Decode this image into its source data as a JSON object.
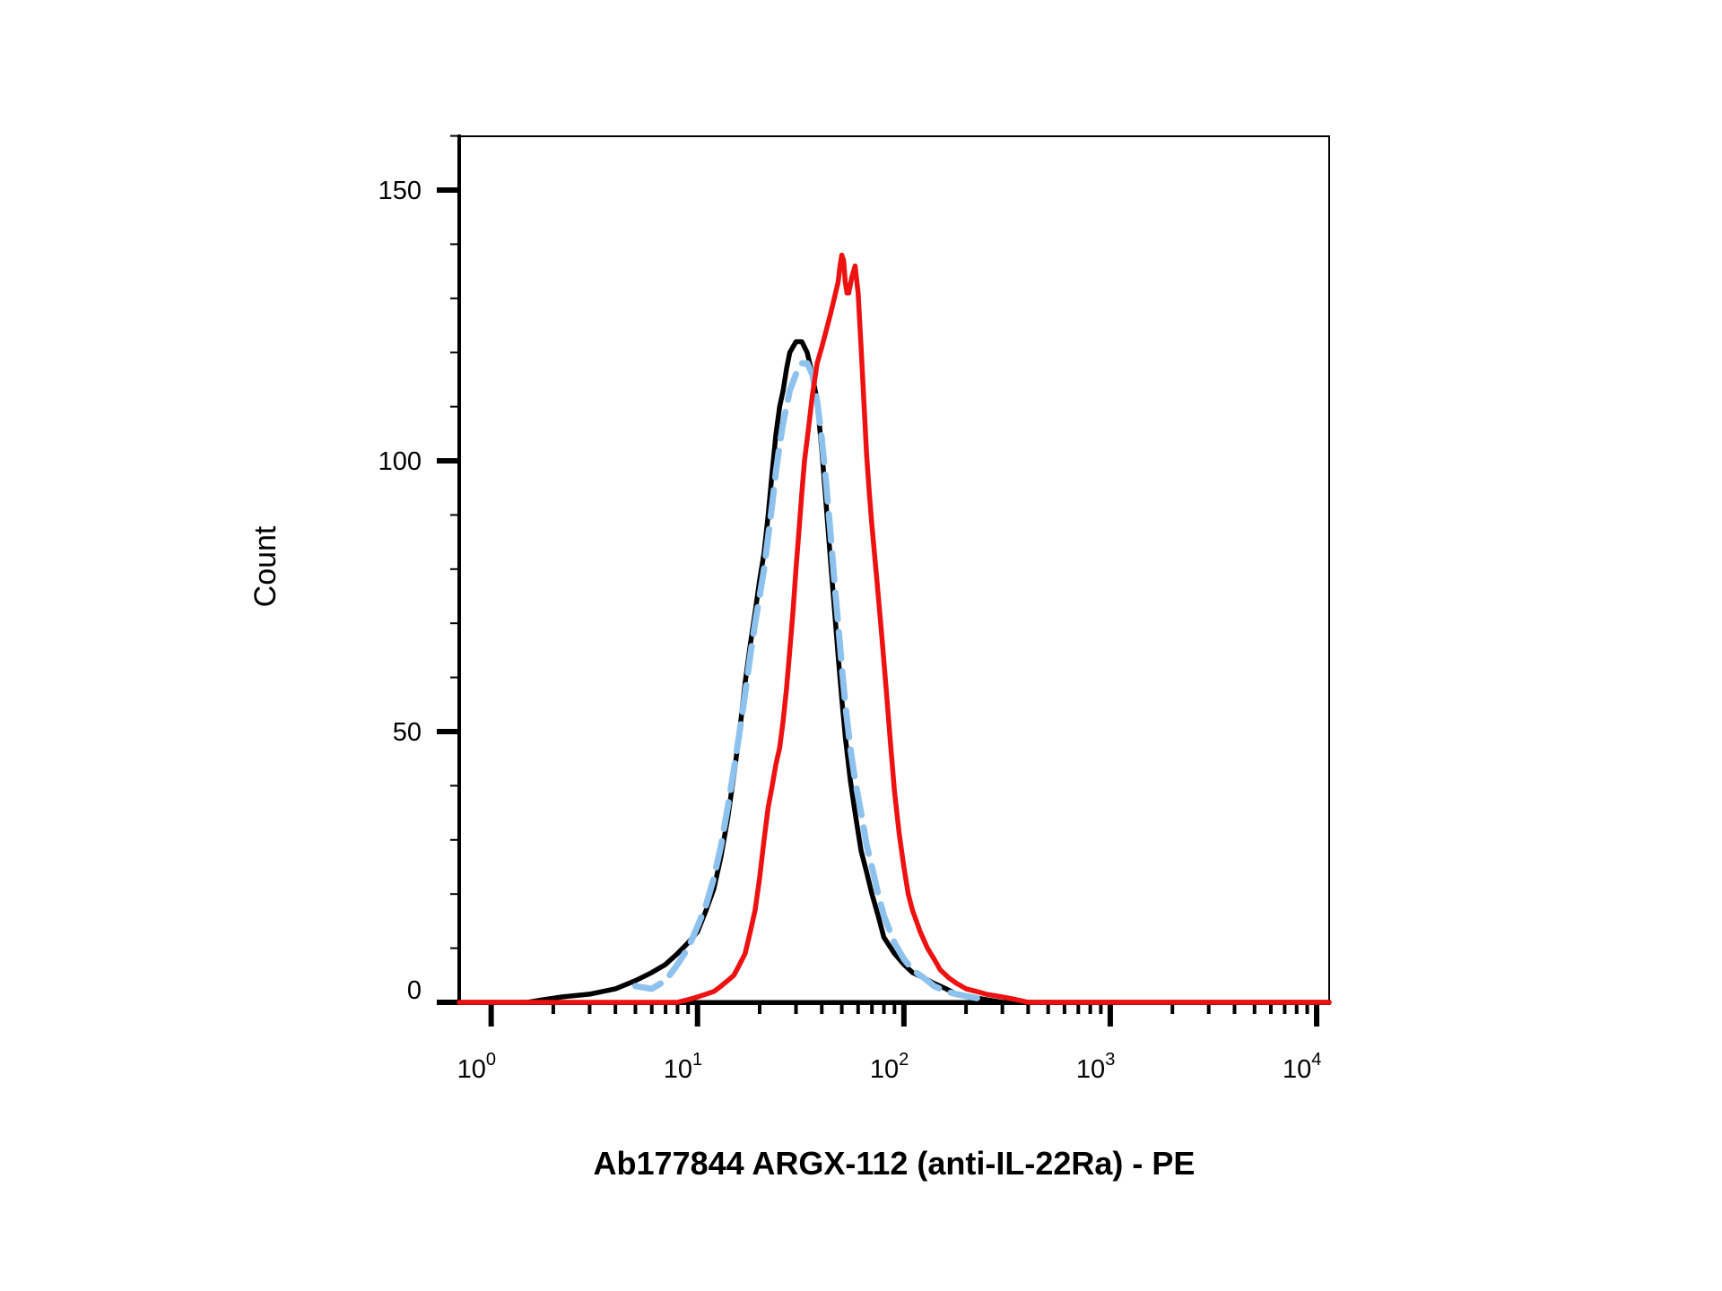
{
  "chart_data": {
    "type": "line",
    "title": "",
    "xlabel": "Ab177844 ARGX-112 (anti-IL-22Ra) - PE",
    "ylabel": "Count",
    "xscale": "log",
    "xlim": [
      0.7,
      11500
    ],
    "ylim": [
      0,
      160
    ],
    "x_ticks": [
      {
        "value": 1,
        "base": "10",
        "exp": "0"
      },
      {
        "value": 10,
        "base": "10",
        "exp": "1"
      },
      {
        "value": 100,
        "base": "10",
        "exp": "2"
      },
      {
        "value": 1000,
        "base": "10",
        "exp": "3"
      },
      {
        "value": 10000,
        "base": "10",
        "exp": "4"
      }
    ],
    "y_ticks": [
      {
        "value": 0,
        "label": "0"
      },
      {
        "value": 50,
        "label": "50"
      },
      {
        "value": 100,
        "label": "100"
      },
      {
        "value": 150,
        "label": "150"
      }
    ],
    "grid": false,
    "legend": "none",
    "series": [
      {
        "color": "#000000",
        "style": "solid",
        "x": [
          0.7,
          1.5,
          1.8,
          2.2,
          3,
          4,
          5,
          6,
          7,
          8,
          9,
          10,
          11,
          12,
          13,
          14,
          15,
          16,
          17,
          18,
          19,
          20,
          21,
          22,
          23,
          24,
          25,
          26,
          27,
          28,
          30,
          32,
          34,
          36,
          38,
          40,
          42,
          44,
          46,
          48,
          50,
          52,
          55,
          58,
          62,
          66,
          70,
          75,
          80,
          90,
          100,
          110,
          125,
          140,
          160,
          180,
          210,
          250,
          300,
          11500
        ],
        "y": [
          0,
          0,
          0.5,
          1,
          1.5,
          2.5,
          4,
          5.5,
          7,
          9,
          11,
          13,
          17,
          21,
          27,
          34,
          42,
          50,
          59,
          66,
          72,
          78,
          83,
          90,
          98,
          105,
          110,
          113,
          117,
          120,
          122,
          122,
          120,
          116,
          111,
          102,
          92,
          82,
          73,
          64,
          56,
          49,
          41,
          35,
          28,
          24,
          20,
          16,
          12,
          9,
          7,
          5.5,
          4.5,
          3.5,
          2.5,
          1.5,
          1,
          0.5,
          0,
          0
        ]
      },
      {
        "color": "#8ec2ee",
        "style": "dashed",
        "x": [
          5,
          6,
          7,
          8,
          9,
          10,
          11,
          12,
          13,
          14,
          15,
          16,
          17,
          18,
          19,
          20,
          21,
          22,
          23,
          24,
          25,
          26,
          27,
          28,
          30,
          32,
          34,
          36,
          38,
          40,
          42,
          44,
          46,
          48,
          50,
          52,
          55,
          58,
          62,
          66,
          70,
          75,
          80,
          90,
          100,
          110,
          125,
          140,
          160,
          180,
          210,
          250
        ],
        "y": [
          3,
          2.5,
          4,
          7,
          10,
          14,
          18,
          23,
          29,
          36,
          43,
          50,
          57,
          64,
          70,
          75,
          80,
          86,
          92,
          98,
          103,
          107,
          110,
          113,
          116,
          118,
          118,
          116,
          111,
          104,
          96,
          87,
          78,
          70,
          62,
          55,
          47,
          41,
          35,
          29,
          25,
          20,
          16,
          11,
          8,
          6,
          4.5,
          3,
          2,
          1.5,
          1,
          0.5
        ]
      },
      {
        "color": "#ee1111",
        "style": "solid",
        "x": [
          0.7,
          5,
          8,
          9,
          10,
          11,
          12,
          13,
          14,
          15,
          16,
          17,
          18,
          19,
          20,
          21,
          22,
          23,
          24,
          25,
          26,
          27,
          28,
          29,
          30,
          31,
          32,
          33,
          34,
          35,
          36,
          38,
          40,
          42,
          44,
          46,
          48,
          49,
          50,
          51,
          52,
          53,
          54,
          56,
          58,
          60,
          62,
          64,
          66,
          68,
          70,
          74,
          78,
          82,
          86,
          90,
          95,
          100,
          105,
          110,
          120,
          130,
          140,
          150,
          165,
          180,
          200,
          225,
          250,
          300,
          350,
          400,
          500,
          11500
        ],
        "y": [
          0,
          0,
          0,
          0.5,
          1,
          1.5,
          2,
          3,
          4,
          5,
          7,
          9,
          13,
          17,
          23,
          30,
          36,
          40,
          44,
          47,
          52,
          58,
          65,
          72,
          80,
          87,
          94,
          100,
          104,
          108,
          112,
          118,
          121,
          124,
          127,
          130,
          133,
          136,
          138,
          137,
          133,
          131,
          131,
          134,
          136,
          131,
          121,
          111,
          101,
          94,
          88,
          78,
          68,
          58,
          48,
          39,
          31,
          25,
          20,
          17,
          13,
          10,
          8,
          6,
          4.5,
          3.5,
          2.5,
          2,
          1.5,
          1,
          0.5,
          0,
          0,
          0
        ]
      }
    ]
  }
}
